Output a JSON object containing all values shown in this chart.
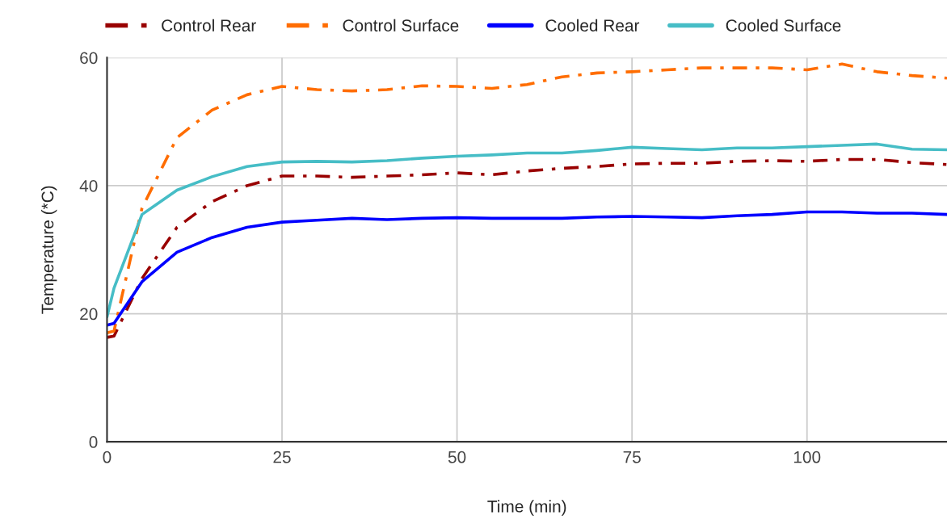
{
  "chart_data": {
    "type": "line",
    "xlabel": "Time (min)",
    "ylabel": "Temperature (*C)",
    "x": [
      0,
      1,
      5,
      10,
      15,
      20,
      25,
      30,
      35,
      40,
      45,
      50,
      55,
      60,
      65,
      70,
      75,
      80,
      85,
      90,
      95,
      100,
      105,
      110,
      115,
      120
    ],
    "series": [
      {
        "name": "Control Rear",
        "color": "#990000",
        "line_style": "dashdot",
        "values": [
          16.3,
          16.5,
          25.5,
          33.5,
          37.5,
          40.0,
          41.5,
          41.5,
          41.3,
          41.5,
          41.7,
          42.0,
          41.7,
          42.3,
          42.7,
          43.0,
          43.4,
          43.5,
          43.5,
          43.8,
          43.9,
          43.8,
          44.1,
          44.1,
          43.6,
          43.3
        ]
      },
      {
        "name": "Control Surface",
        "color": "#ff6d01",
        "line_style": "dashdot",
        "values": [
          17.0,
          17.3,
          36.5,
          47.5,
          51.8,
          54.2,
          55.5,
          55.0,
          54.8,
          55.0,
          55.6,
          55.5,
          55.2,
          55.8,
          57.0,
          57.6,
          57.8,
          58.1,
          58.4,
          58.4,
          58.4,
          58.1,
          59.0,
          57.8,
          57.2,
          56.8
        ]
      },
      {
        "name": "Cooled Rear",
        "color": "#0000ff",
        "line_style": "solid",
        "values": [
          18.2,
          18.5,
          25.0,
          29.6,
          31.9,
          33.5,
          34.3,
          34.6,
          34.9,
          34.7,
          34.9,
          35.0,
          34.9,
          34.9,
          34.9,
          35.1,
          35.2,
          35.1,
          35.0,
          35.3,
          35.5,
          35.9,
          35.9,
          35.7,
          35.7,
          35.5
        ]
      },
      {
        "name": "Cooled Surface",
        "color": "#46bdc6",
        "line_style": "solid",
        "values": [
          19.5,
          24.0,
          35.5,
          39.3,
          41.4,
          43.0,
          43.7,
          43.8,
          43.7,
          43.9,
          44.3,
          44.6,
          44.8,
          45.1,
          45.1,
          45.5,
          46.0,
          45.8,
          45.6,
          45.9,
          45.9,
          46.1,
          46.3,
          46.5,
          45.7,
          45.6
        ]
      }
    ],
    "xlim": [
      0,
      120
    ],
    "ylim": [
      0,
      60
    ],
    "xticks": [
      0,
      25,
      50,
      75,
      100
    ],
    "yticks": [
      0,
      20,
      40,
      60
    ],
    "grid": true,
    "legend": "top left"
  }
}
